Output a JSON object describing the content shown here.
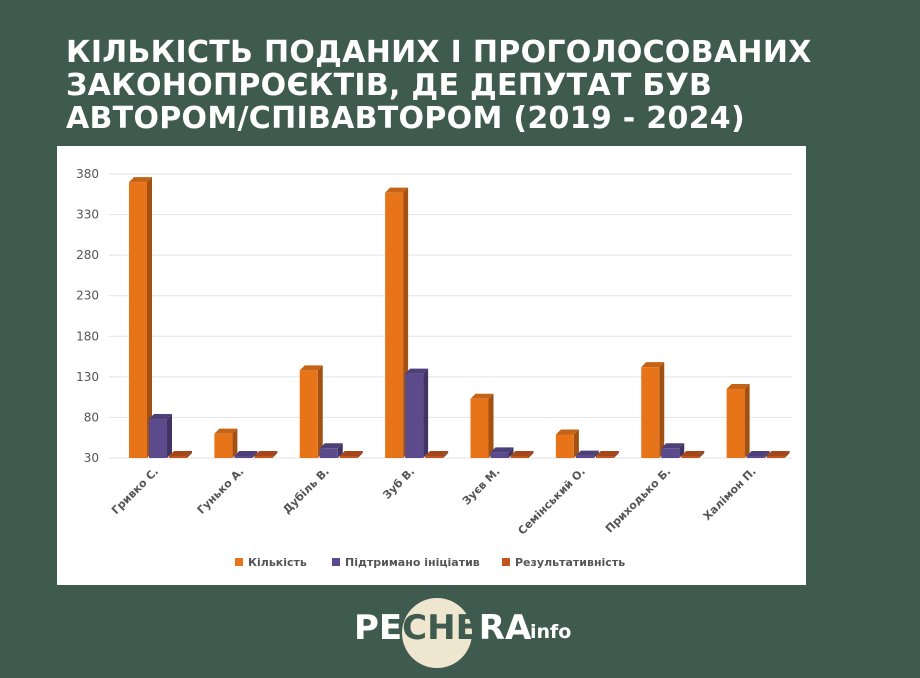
{
  "title": {
    "line1": "КІЛЬКІСТЬ ПОДАНИХ І ПРОГОЛОСОВАНИХ",
    "line2": "ЗАКОНОПРОЄКТІВ, ДЕ ДЕПУТАТ БУВ",
    "line3": "АВТОРОМ/СПІВАВТОРОМ (2019 - 2024)"
  },
  "logo": {
    "part1": "PE",
    "part2": "CHE",
    "part3": "RA",
    "suffix": "info"
  },
  "colors": {
    "background": "#3f5a4e",
    "series1": "#e8741a",
    "series2": "#5b4a8c",
    "series3": "#c2541e"
  },
  "chart_data": {
    "type": "bar",
    "categories": [
      "Гривко С.",
      "Гунько А.",
      "Дубіль В.",
      "Зуб В.",
      "Зуєв М.",
      "Семінський О.",
      "Приходько Б.",
      "Халімон П."
    ],
    "series": [
      {
        "name": "Кількість",
        "values": [
          370,
          60,
          138,
          357,
          103,
          59,
          142,
          115
        ]
      },
      {
        "name": "Підтримано ініціатив",
        "values": [
          78,
          32,
          42,
          134,
          37,
          33,
          42,
          32
        ]
      },
      {
        "name": "Результативність",
        "values": [
          30,
          30,
          30,
          30,
          30,
          30,
          30,
          30
        ]
      }
    ],
    "yticks": [
      "380",
      "330",
      "280",
      "230",
      "180",
      "130",
      "80",
      "30"
    ],
    "ylim": [
      30,
      380
    ],
    "grid": true,
    "legend_position": "bottom"
  }
}
